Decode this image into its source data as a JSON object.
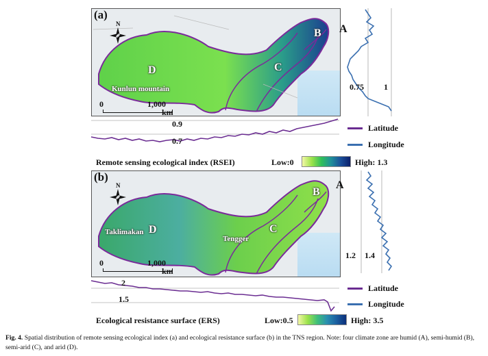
{
  "panels": [
    {
      "label": "(a)",
      "zones": {
        "A": "A",
        "B": "B",
        "C": "C",
        "D": "D"
      },
      "place": "Kunlun mountain",
      "compass": "N",
      "scale": {
        "start": "0",
        "end": "1,000",
        "unit": "km"
      },
      "lat_ticks": [
        "0.9",
        "0.7"
      ],
      "lon_ticks": [
        "0.75",
        "1"
      ],
      "index_title": "Remote sensing ecological index (RSEI)",
      "legend_low": "Low:0",
      "legend_high": "High: 1.3"
    },
    {
      "label": "(b)",
      "zones": {
        "A": "A",
        "B": "B",
        "C": "C",
        "D": "D"
      },
      "places": [
        "Taklimakan",
        "Tengger"
      ],
      "compass": "N",
      "scale": {
        "start": "0",
        "end": "1,000",
        "unit": "km"
      },
      "lat_ticks": [
        "2",
        "1.5"
      ],
      "lon_ticks": [
        "1.2",
        "1.4"
      ],
      "index_title": "Ecological resistance surface (ERS)",
      "legend_low": "Low:0.5",
      "legend_high": "High: 3.5"
    }
  ],
  "legend": {
    "latitude": "Latitude",
    "longitude": "Longitude",
    "latitude_color": "#6a2c91",
    "longitude_color": "#3a6fb0"
  },
  "caption": {
    "fig": "Fig. 4.",
    "text": "Spatial distribution of remote sensing ecological index (a) and ecological resistance surface (b) in the TNS region. Note: four climate zone are humid (A), semi-humid (B), semi-arid (C), and arid (D)."
  }
}
